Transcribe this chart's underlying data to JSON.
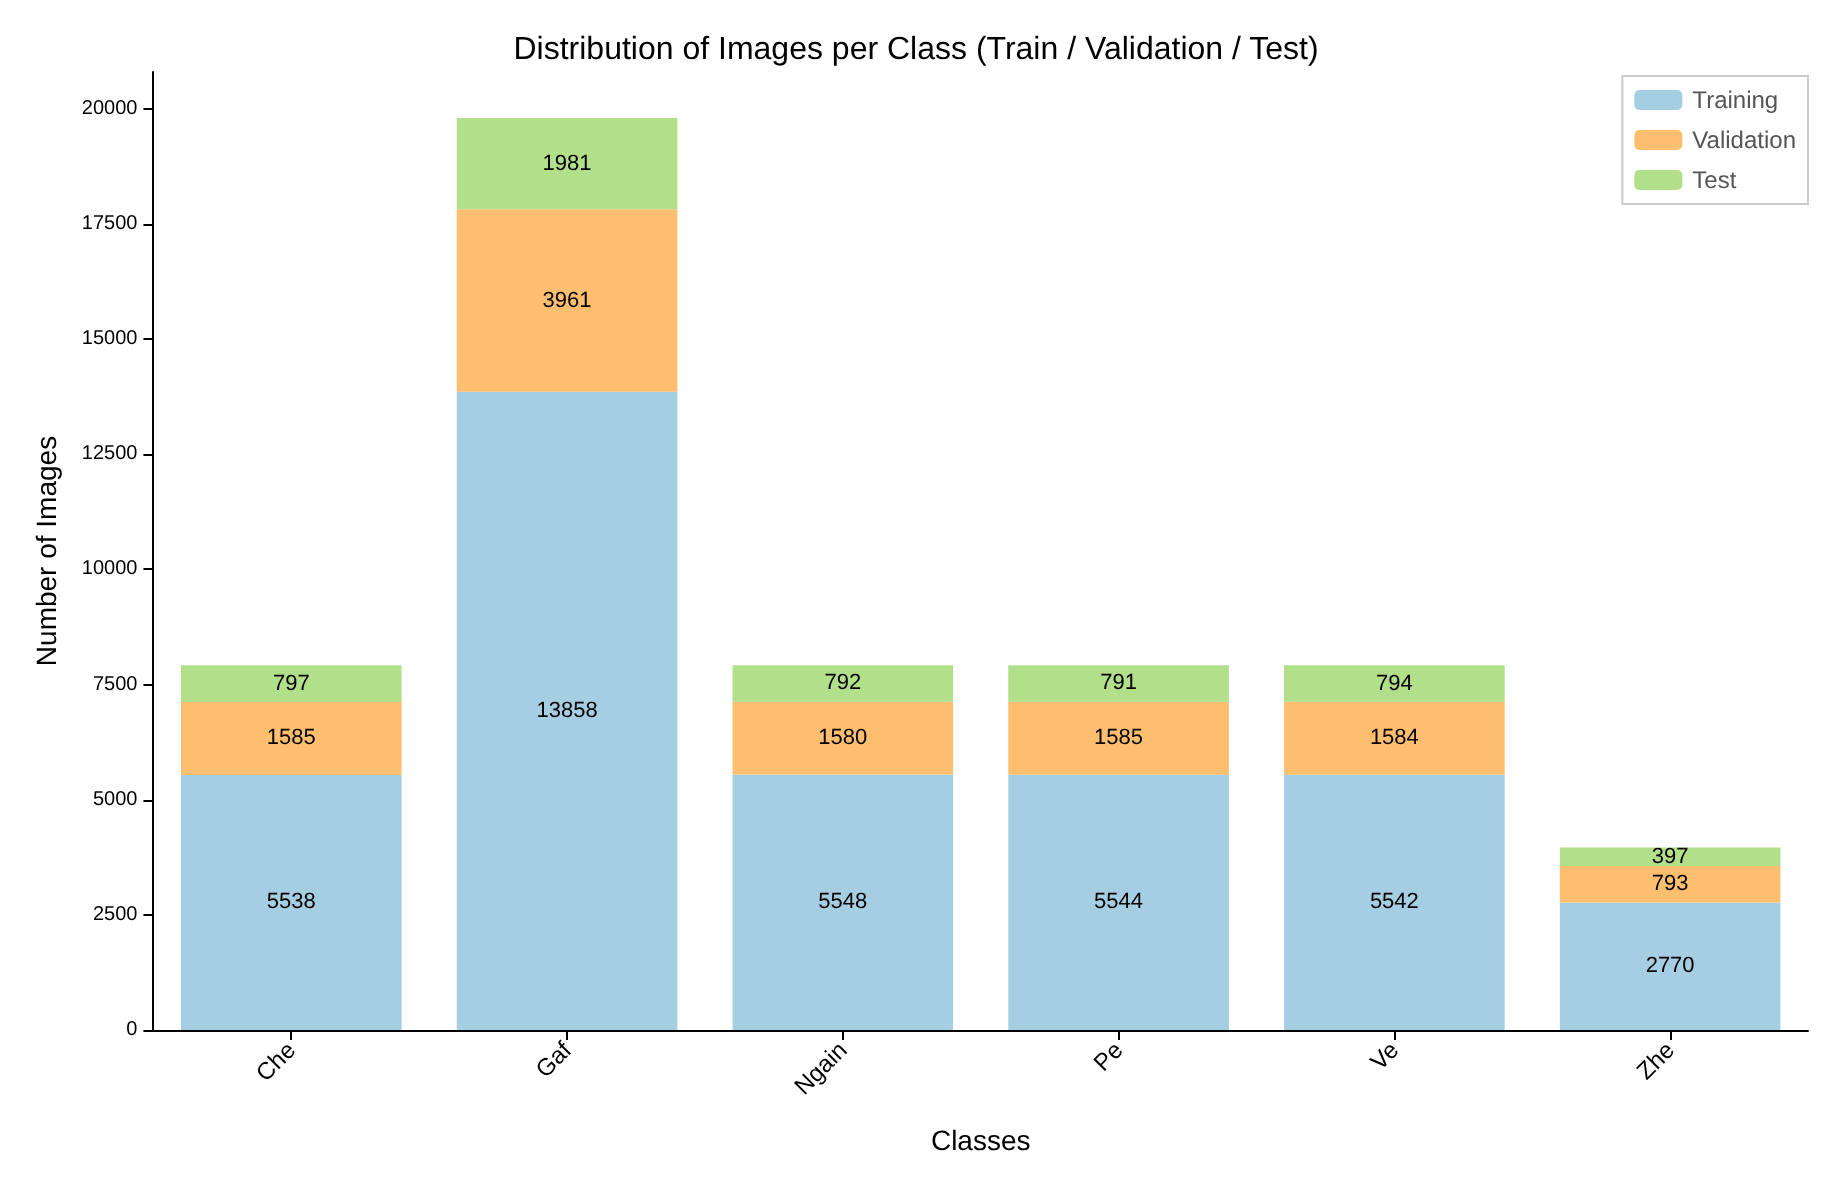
{
  "chart_data": {
    "type": "bar",
    "title": "Distribution of Images per Class (Train / Validation / Test)",
    "xlabel": "Classes",
    "ylabel": "Number of Images",
    "categories": [
      "Che",
      "Gaf",
      "Ngain",
      "Pe",
      "Ve",
      "Zhe"
    ],
    "stacked": true,
    "data_labels": true,
    "legend": "top right",
    "grid": false,
    "ylim": [
      0,
      20800
    ],
    "yticks": [
      0,
      2500,
      5000,
      7500,
      10000,
      12500,
      15000,
      17500,
      20000
    ],
    "series": [
      {
        "name": "Training",
        "color": "#a6cee3",
        "values": [
          5538,
          13858,
          5548,
          5544,
          5542,
          2770
        ]
      },
      {
        "name": "Validation",
        "color": "#fdbf6f",
        "values": [
          1585,
          3961,
          1580,
          1585,
          1584,
          793
        ]
      },
      {
        "name": "Test",
        "color": "#b2df8a",
        "values": [
          797,
          1981,
          792,
          791,
          794,
          397
        ]
      }
    ]
  }
}
